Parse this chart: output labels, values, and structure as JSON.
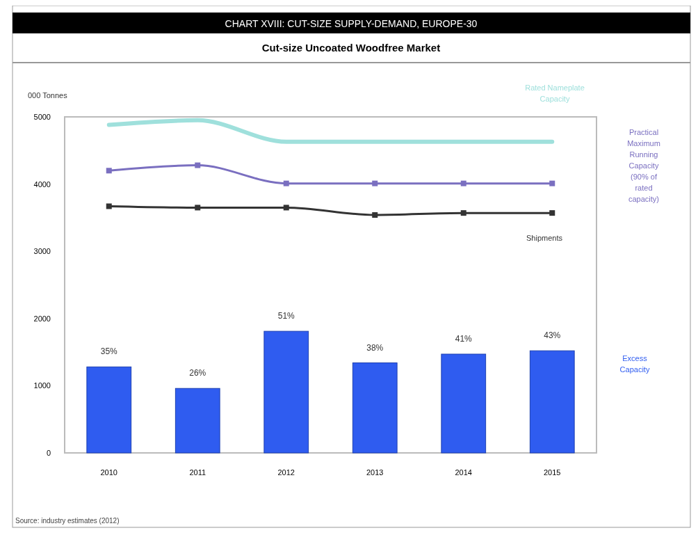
{
  "chart_data": {
    "type": "bar",
    "title": "CHART XVIII: CUT-SIZE SUPPLY-DEMAND, EUROPE-30",
    "subtitle": "Cut-size Uncoated Woodfree Market",
    "ylabel": "000 Tonnes",
    "categories": [
      "2010",
      "2011",
      "2012",
      "2013",
      "2014",
      "2015"
    ],
    "series": [
      {
        "name": "Excess Capacity",
        "color": "#2f5cf0",
        "values": [
          1280,
          960,
          1810,
          1340,
          1470,
          1520
        ]
      },
      {
        "name": "Rated Nameplate Capacity",
        "type": "line",
        "color": "#9fe0dc",
        "marker": "none",
        "values": [
          4880,
          4950,
          4630,
          4630,
          4630,
          4630
        ]
      },
      {
        "name": "Practical Maximum Running Capacity (90% of rated capacity)",
        "type": "line",
        "color": "#7a6fc0",
        "marker": "square",
        "values": [
          4200,
          4280,
          4010,
          4010,
          4010,
          4010
        ]
      },
      {
        "name": "Shipments",
        "type": "line",
        "color": "#333333",
        "marker": "square",
        "values": [
          3670,
          3650,
          3650,
          3540,
          3570,
          3570
        ]
      }
    ],
    "ylim": [
      0,
      5000
    ],
    "yticks": [
      0,
      1000,
      2000,
      3000,
      4000,
      5000
    ],
    "grid": false,
    "annotations": [
      {
        "text": "35%",
        "x": "2010",
        "y": 1280
      },
      {
        "text": "26%",
        "x": "2011",
        "y": 960
      },
      {
        "text": "51%",
        "x": "2012",
        "y": 1810
      },
      {
        "text": "38%",
        "x": "2013",
        "y": 1340
      },
      {
        "text": "41%",
        "x": "2014",
        "y": 1470
      },
      {
        "text": "43%",
        "x": "2015",
        "y": 1520
      },
      "Source: industry estimates (2012)"
    ]
  }
}
